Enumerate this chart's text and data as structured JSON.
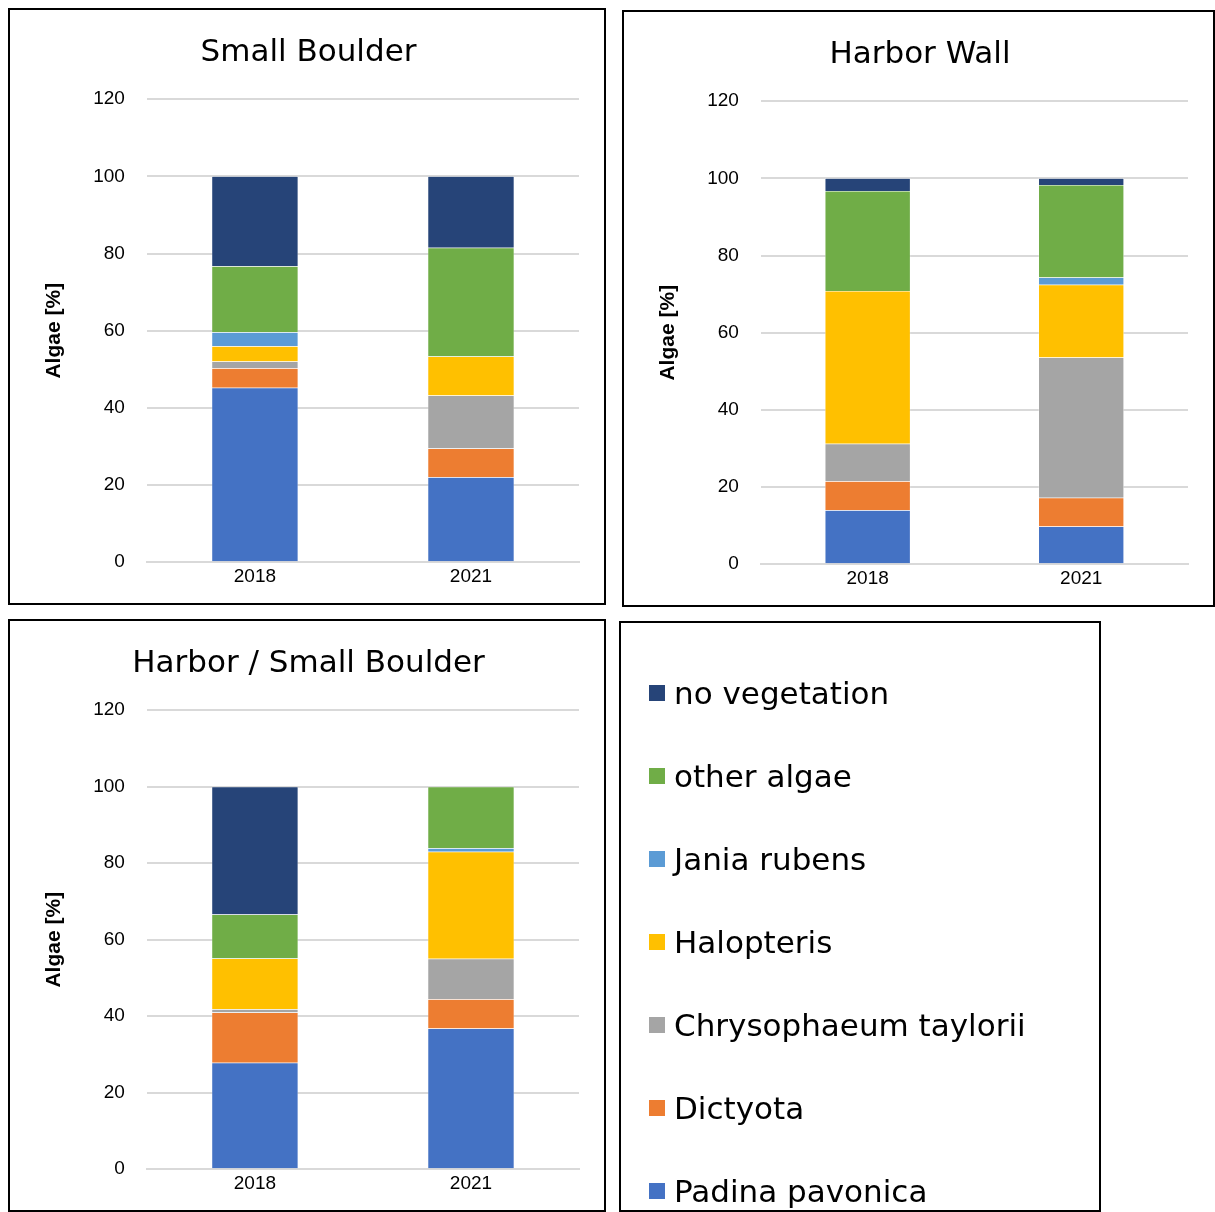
{
  "chart_data": [
    {
      "type": "bar",
      "title": "Small Boulder",
      "ylabel": "Algae [%]",
      "categories": [
        "2018",
        "2021"
      ],
      "stacked": true,
      "ylim": [
        0,
        120
      ],
      "yticks": [
        0,
        20,
        40,
        60,
        80,
        100,
        120
      ],
      "grid": "y",
      "series": [
        {
          "color": "#4472c4",
          "values": [
            45.2,
            22.0
          ]
        },
        {
          "color": "#ed7d31",
          "values": [
            5.1,
            7.5
          ]
        },
        {
          "color": "#a5a5a5",
          "values": [
            1.7,
            13.7
          ]
        },
        {
          "color": "#ffc000",
          "values": [
            4.0,
            10.1
          ]
        },
        {
          "color": "#5b9bd5",
          "values": [
            3.6,
            0
          ]
        },
        {
          "color": "#70ad47",
          "values": [
            17.1,
            28.2
          ]
        },
        {
          "color": "#264478",
          "values": [
            23.3,
            18.5
          ]
        }
      ]
    },
    {
      "type": "bar",
      "title": "Harbor Wall",
      "ylabel": "Algae [%]",
      "categories": [
        "2018",
        "2021"
      ],
      "stacked": true,
      "ylim": [
        0,
        120
      ],
      "yticks": [
        0,
        20,
        40,
        60,
        80,
        100,
        120
      ],
      "grid": "y",
      "series": [
        {
          "color": "#4472c4",
          "values": [
            14.0,
            9.8
          ]
        },
        {
          "color": "#ed7d31",
          "values": [
            7.5,
            7.4
          ]
        },
        {
          "color": "#a5a5a5",
          "values": [
            9.7,
            36.4
          ]
        },
        {
          "color": "#ffc000",
          "values": [
            39.6,
            18.8
          ]
        },
        {
          "color": "#5b9bd5",
          "values": [
            0,
            1.9
          ]
        },
        {
          "color": "#70ad47",
          "values": [
            25.9,
            24.0
          ]
        },
        {
          "color": "#264478",
          "values": [
            3.3,
            1.7
          ]
        }
      ]
    },
    {
      "type": "bar",
      "title": "Harbor / Small Boulder",
      "ylabel": "Algae [%]",
      "categories": [
        "2018",
        "2021"
      ],
      "stacked": true,
      "ylim": [
        0,
        120
      ],
      "yticks": [
        0,
        20,
        40,
        60,
        80,
        100,
        120
      ],
      "grid": "y",
      "legend": "right",
      "series": [
        {
          "name": "Padina pavonica",
          "color": "#4472c4",
          "values": [
            27.8,
            36.8
          ]
        },
        {
          "name": "Dictyota",
          "color": "#ed7d31",
          "values": [
            13.2,
            7.6
          ]
        },
        {
          "name": "Chrysophaeum taylorii",
          "color": "#a5a5a5",
          "values": [
            0.8,
            10.6
          ]
        },
        {
          "name": "Halopteris",
          "color": "#ffc000",
          "values": [
            13.3,
            28.0
          ]
        },
        {
          "name": "Jania rubens",
          "color": "#5b9bd5",
          "values": [
            0,
            0.9
          ]
        },
        {
          "name": "other algae",
          "color": "#70ad47",
          "values": [
            11.5,
            16.1
          ]
        },
        {
          "name": "no vegetation",
          "color": "#264478",
          "values": [
            33.4,
            0
          ]
        }
      ]
    }
  ]
}
